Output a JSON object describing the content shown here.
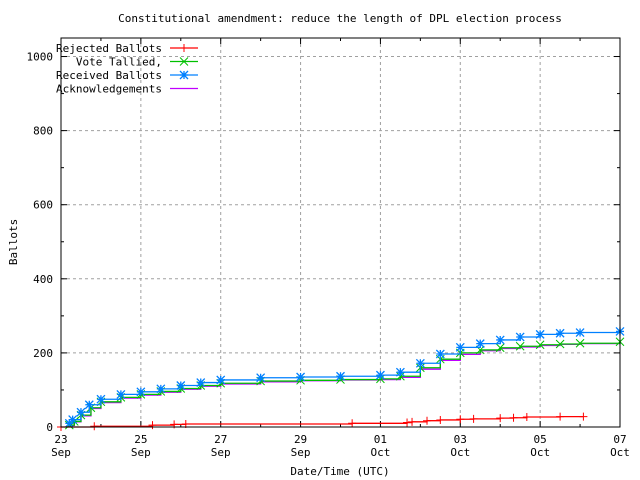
{
  "chart_data": {
    "type": "line",
    "title": "Constitutional amendment: reduce the length of DPL election process",
    "xlabel": "Date/Time (UTC)",
    "ylabel": "Ballots",
    "ylim": [
      0,
      1050
    ],
    "xlim": [
      "09-23 00:00",
      "10-07 00:00"
    ],
    "y_ticks": [
      "0",
      "200",
      "400",
      "600",
      "800",
      "1000"
    ],
    "x_ticks": [
      {
        "day": "23",
        "month": "Sep",
        "at": "09-23 00:00"
      },
      {
        "day": "25",
        "month": "Sep",
        "at": "09-25 00:00"
      },
      {
        "day": "27",
        "month": "Sep",
        "at": "09-27 00:00"
      },
      {
        "day": "29",
        "month": "Sep",
        "at": "09-29 00:00"
      },
      {
        "day": "01",
        "month": "Oct",
        "at": "10-01 00:00"
      },
      {
        "day": "03",
        "month": "Oct",
        "at": "10-03 00:00"
      },
      {
        "day": "05",
        "month": "Oct",
        "at": "10-05 00:00"
      },
      {
        "day": "07",
        "month": "Oct",
        "at": "10-07 00:00"
      }
    ],
    "grid": true,
    "legend_position": "top-left",
    "series": [
      {
        "name": "Rejected Ballots",
        "color": "#ff0000",
        "marker": "plus",
        "x": [
          "09-23 00:00",
          "09-23 20:00",
          "09-25 07:00",
          "09-25 20:00",
          "09-26 03:00",
          "09-30 07:00",
          "10-01 16:00",
          "10-01 19:00",
          "10-02 04:00",
          "10-02 12:00",
          "10-03 00:00",
          "10-03 08:00",
          "10-04 00:00",
          "10-04 08:00",
          "10-04 16:00",
          "10-05 12:00",
          "10-06 02:00"
        ],
        "y": [
          0,
          2,
          5,
          7,
          8,
          10,
          12,
          14,
          17,
          19,
          21,
          22,
          24,
          25,
          27,
          28,
          28
        ]
      },
      {
        "name": "Vote Tallied,",
        "color": "#00c000",
        "marker": "cross",
        "x": [
          "09-23 05:00",
          "09-23 08:00",
          "09-23 12:00",
          "09-23 18:00",
          "09-24 00:00",
          "09-24 12:00",
          "09-25 00:00",
          "09-25 12:00",
          "09-26 00:00",
          "09-26 12:00",
          "09-27 00:00",
          "09-28 00:00",
          "09-29 00:00",
          "09-30 00:00",
          "10-01 00:00",
          "10-01 12:00",
          "10-02 00:00",
          "10-02 12:00",
          "10-03 00:00",
          "10-03 12:00",
          "10-04 00:00",
          "10-04 12:00",
          "10-05 00:00",
          "10-05 12:00",
          "10-06 00:00",
          "10-07 00:00"
        ],
        "y": [
          5,
          15,
          32,
          52,
          68,
          80,
          88,
          96,
          104,
          112,
          118,
          124,
          126,
          128,
          130,
          137,
          160,
          183,
          200,
          208,
          214,
          218,
          222,
          224,
          226,
          230
        ]
      },
      {
        "name": "Received Ballots",
        "color": "#0080ff",
        "marker": "star",
        "x": [
          "09-23 05:00",
          "09-23 07:00",
          "09-23 12:00",
          "09-23 17:00",
          "09-24 00:00",
          "09-24 12:00",
          "09-25 00:00",
          "09-25 12:00",
          "09-26 00:00",
          "09-26 12:00",
          "09-27 00:00",
          "09-28 00:00",
          "09-29 00:00",
          "09-30 00:00",
          "10-01 00:00",
          "10-01 12:00",
          "10-02 00:00",
          "10-02 12:00",
          "10-03 00:00",
          "10-03 12:00",
          "10-04 00:00",
          "10-04 12:00",
          "10-05 00:00",
          "10-05 12:00",
          "10-06 00:00",
          "10-07 00:00"
        ],
        "y": [
          10,
          20,
          40,
          60,
          75,
          88,
          95,
          103,
          112,
          120,
          127,
          133,
          135,
          137,
          140,
          148,
          172,
          197,
          215,
          225,
          235,
          243,
          250,
          253,
          255,
          258
        ]
      },
      {
        "name": "Acknowledgements",
        "color": "#c000ff",
        "marker": "none",
        "x": [
          "09-23 05:00",
          "09-23 08:00",
          "09-23 12:00",
          "09-23 18:00",
          "09-24 00:00",
          "09-24 12:00",
          "09-25 00:00",
          "09-25 12:00",
          "09-26 00:00",
          "09-26 12:00",
          "09-27 00:00",
          "09-28 00:00",
          "09-29 00:00",
          "09-30 00:00",
          "10-01 00:00",
          "10-01 12:00",
          "10-02 00:00",
          "10-02 12:00",
          "10-03 00:00",
          "10-03 12:00",
          "10-04 00:00",
          "10-04 12:00",
          "10-05 00:00",
          "10-05 12:00",
          "10-06 00:00",
          "10-07 00:00"
        ],
        "y": [
          4,
          14,
          30,
          50,
          66,
          78,
          86,
          94,
          102,
          110,
          116,
          122,
          125,
          127,
          128,
          134,
          156,
          180,
          196,
          206,
          212,
          216,
          220,
          223,
          225,
          228
        ]
      }
    ]
  }
}
